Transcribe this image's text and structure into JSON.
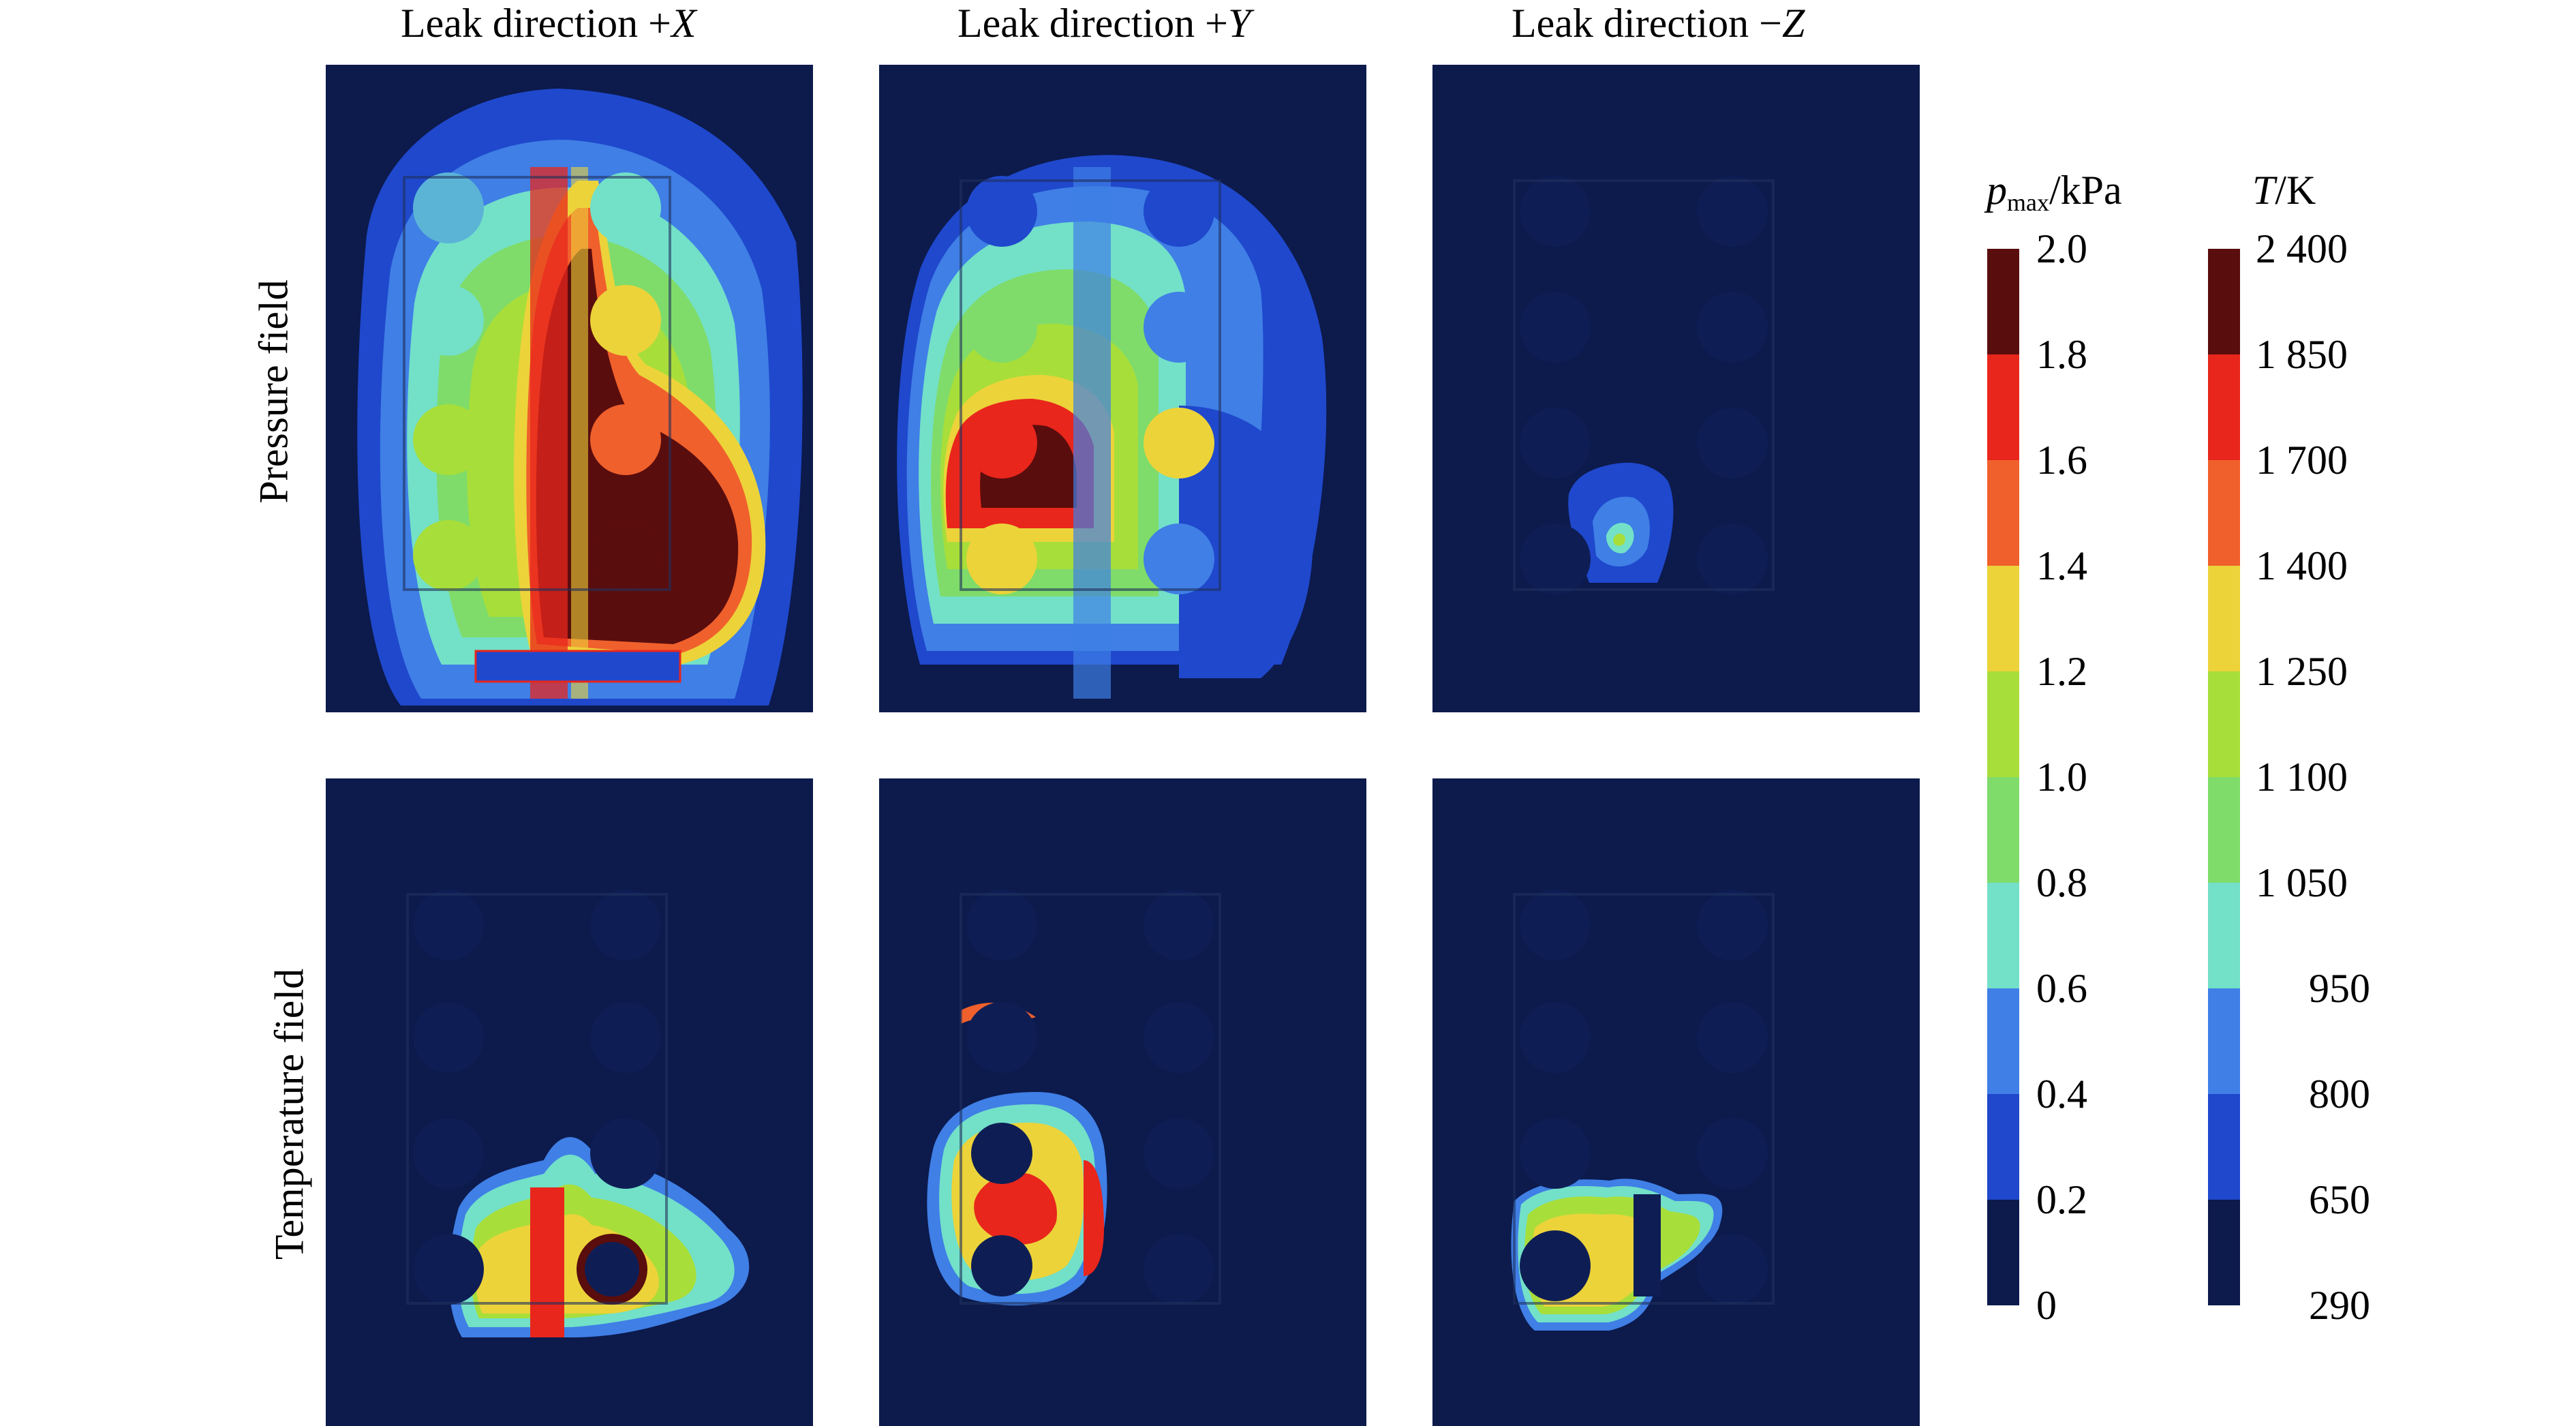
{
  "column_titles": [
    {
      "prefix": "Leak direction ",
      "sign": "+",
      "axis": "X"
    },
    {
      "prefix": "Leak direction ",
      "sign": "+",
      "axis": "Y"
    },
    {
      "prefix": "Leak direction ",
      "sign": "−",
      "axis": "Z"
    }
  ],
  "row_titles": [
    "Pressure field",
    "Temperature field"
  ],
  "colorbars": {
    "pressure": {
      "symbol": "p",
      "subscript": "max",
      "unit": "/kPa",
      "ticks": [
        "2.0",
        "1.8",
        "1.6",
        "1.4",
        "1.2",
        "1.0",
        "0.8",
        "0.6",
        "0.4",
        "0.2",
        "0"
      ]
    },
    "temperature": {
      "symbol": "T",
      "unit": "/K",
      "ticks": [
        "2 400",
        "1 850",
        "1 700",
        "1 400",
        "1 250",
        "1 100",
        "1 050",
        "950",
        "800",
        "650",
        "290"
      ]
    }
  },
  "colors": {
    "levels_top_to_bottom": [
      "#5a0d0d",
      "#e8261c",
      "#f0602c",
      "#ecd33a",
      "#a8de3a",
      "#7fdc6a",
      "#73e0c8",
      "#3f7fe6",
      "#1f48cc",
      "#0c1a4c"
    ],
    "background": "#0c1a4c"
  }
}
